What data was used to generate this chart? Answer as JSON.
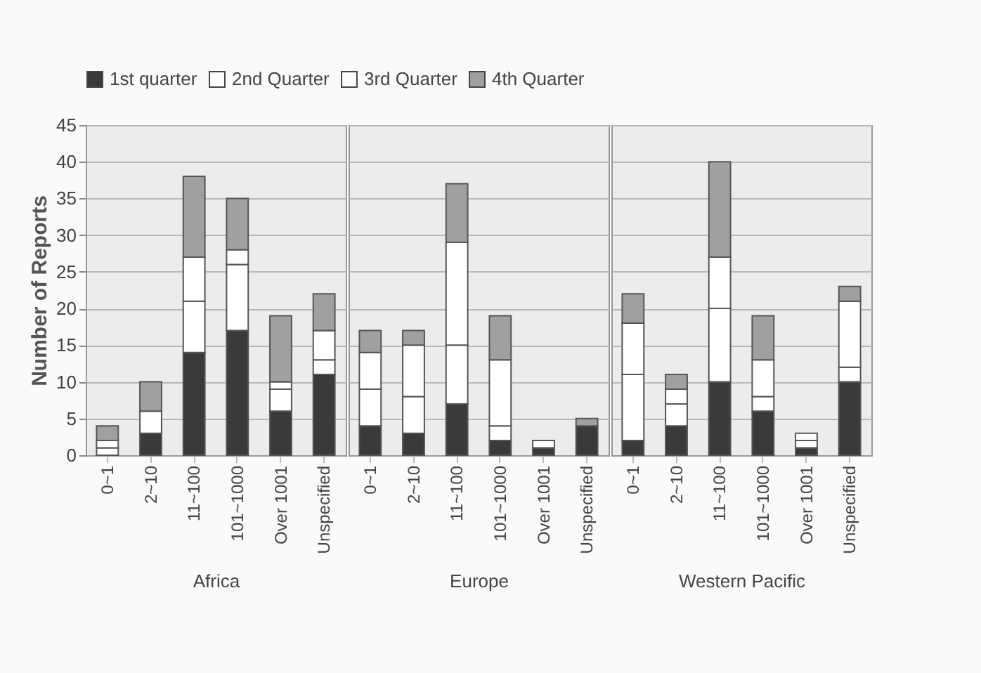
{
  "chart_data": [
    {
      "type": "bar",
      "stacked": true,
      "xlabel": "Africa",
      "ylabel": "Number of Reports",
      "categories": [
        "0~1",
        "2~10",
        "11~100",
        "101~1000",
        "Over 1001",
        "Unspecified"
      ],
      "ylim": [
        0,
        45
      ],
      "yticks": [
        0,
        5,
        10,
        15,
        20,
        25,
        30,
        35,
        40,
        45
      ],
      "grid": "y",
      "legend": "top",
      "series": [
        {
          "name": "1st quarter",
          "color": "#3a3a3a",
          "values": [
            0,
            3,
            14,
            17,
            6,
            11
          ]
        },
        {
          "name": "2nd Quarter",
          "color": "#ffffff",
          "values": [
            1,
            3,
            7,
            9,
            3,
            2
          ]
        },
        {
          "name": "3rd Quarter",
          "color": "#ffffff",
          "values": [
            1,
            0,
            6,
            2,
            1,
            4
          ]
        },
        {
          "name": "4th Quarter",
          "color": "#a0a0a0",
          "values": [
            2,
            4,
            11,
            7,
            9,
            5
          ]
        }
      ]
    },
    {
      "type": "bar",
      "stacked": true,
      "xlabel": "Europe",
      "categories": [
        "0~1",
        "2~10",
        "11~100",
        "101~1000",
        "Over 1001",
        "Unspecified"
      ],
      "ylim": [
        0,
        45
      ],
      "yticks": [
        0,
        5,
        10,
        15,
        20,
        25,
        30,
        35,
        40,
        45
      ],
      "grid": "y",
      "tick_labels": "x",
      "legend": "top",
      "series": [
        {
          "name": "1st quarter",
          "color": "#3a3a3a",
          "values": [
            4,
            3,
            7,
            2,
            1,
            4
          ]
        },
        {
          "name": "2nd Quarter",
          "color": "#ffffff",
          "values": [
            5,
            5,
            8,
            2,
            1,
            0
          ]
        },
        {
          "name": "3rd Quarter",
          "color": "#ffffff",
          "values": [
            5,
            7,
            14,
            9,
            0,
            0
          ]
        },
        {
          "name": "4th Quarter",
          "color": "#a0a0a0",
          "values": [
            3,
            2,
            8,
            6,
            0,
            1
          ]
        }
      ]
    },
    {
      "type": "bar",
      "stacked": true,
      "xlabel": "Western Pacific",
      "categories": [
        "0~1",
        "2~10",
        "11~100",
        "101~1000",
        "Over 1001",
        "Unspecified"
      ],
      "ylim": [
        0,
        45
      ],
      "yticks": [
        0,
        5,
        10,
        15,
        20,
        25,
        30,
        35,
        40,
        45
      ],
      "grid": "y",
      "tick_labels": "x",
      "legend": "top",
      "series": [
        {
          "name": "1st quarter",
          "color": "#3a3a3a",
          "values": [
            2,
            4,
            10,
            6,
            1,
            10
          ]
        },
        {
          "name": "2nd Quarter",
          "color": "#ffffff",
          "values": [
            9,
            3,
            10,
            2,
            1,
            2
          ]
        },
        {
          "name": "3rd Quarter",
          "color": "#ffffff",
          "values": [
            7,
            2,
            7,
            5,
            1,
            9
          ]
        },
        {
          "name": "4th Quarter",
          "color": "#a0a0a0",
          "values": [
            4,
            2,
            13,
            6,
            0,
            2
          ]
        }
      ]
    }
  ]
}
